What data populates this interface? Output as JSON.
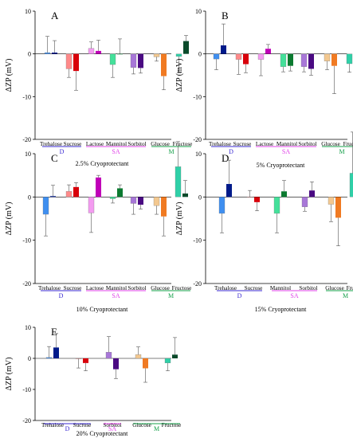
{
  "figure": {
    "ylabel": "ΔZP (mV)",
    "ylim": [
      -20,
      10
    ],
    "yticks": [
      -20,
      -10,
      0,
      10
    ]
  },
  "colors": {
    "Trehalose": [
      "#3f8ff0",
      "#001a8a"
    ],
    "Sucrose": [
      "#ff8a8a",
      "#d8000a"
    ],
    "Lactose": [
      "#f39bf0",
      "#c000b8"
    ],
    "Mannitol": [
      "#44e09a",
      "#0b7a30"
    ],
    "Sorbitol": [
      "#a877d8",
      "#4a0a82"
    ],
    "Glucose": [
      "#f3c890",
      "#f07a22"
    ],
    "Fructose": [
      "#2fd0a8",
      "#0a4a2a"
    ],
    "group_D": "#3a2ad2",
    "group_SA": "#e040e8",
    "group_M": "#16a04a"
  },
  "chart_data": [
    {
      "type": "bar",
      "panel": "A",
      "caption": "2.5% Cryoprotectant",
      "ylabel": "ΔZP (mV)",
      "ylim": [
        -20,
        10
      ],
      "categories": [
        "Trehalose",
        "Sucrose",
        "Lactose",
        "Mannitol",
        "Sorbitol",
        "Glucose",
        "Fructose"
      ],
      "values": [
        [
          0.3,
          0.3
        ],
        [
          -3.5,
          -4.0
        ],
        [
          1.3,
          0.7
        ],
        [
          -2.5,
          0.0
        ],
        [
          -3.2,
          -3.3
        ],
        [
          -0.7,
          -5.2
        ],
        [
          -0.6,
          3.0
        ]
      ],
      "errors": [
        [
          3.8,
          2.8
        ],
        [
          2.0,
          4.5
        ],
        [
          1.5,
          2.5
        ],
        [
          3.0,
          3.5
        ],
        [
          1.5,
          1.2
        ],
        [
          1.0,
          3.2
        ],
        [
          3.8,
          1.3
        ]
      ],
      "groups": [
        {
          "label": "D",
          "from": 0,
          "to": 1
        },
        {
          "label": "SA",
          "from": 2,
          "to": 4
        },
        {
          "label": "M",
          "from": 5,
          "to": 6
        }
      ]
    },
    {
      "type": "bar",
      "panel": "B",
      "caption": "5% Cryoprotectant",
      "ylabel": "ΔZP (mV)",
      "ylim": [
        -20,
        10
      ],
      "categories": [
        "Trehalose",
        "Sucrose",
        "Lactose",
        "Mannitol",
        "Sorbitol",
        "Glucose",
        "Fructose"
      ],
      "values": [
        [
          -1.2,
          2.0
        ],
        [
          -1.3,
          -2.4
        ],
        [
          -1.3,
          1.2
        ],
        [
          -3.0,
          -2.8
        ],
        [
          -3.0,
          -3.5
        ],
        [
          -1.7,
          -2.8
        ],
        [
          -2.3,
          2.0
        ]
      ],
      "errors": [
        [
          2.5,
          5.0
        ],
        [
          3.5,
          2.0
        ],
        [
          3.8,
          1.0
        ],
        [
          1.2,
          1.2
        ],
        [
          1.2,
          1.5
        ],
        [
          2.0,
          6.5
        ],
        [
          2.0,
          5.0
        ]
      ],
      "groups": [
        {
          "label": "D",
          "from": 0,
          "to": 1
        },
        {
          "label": "SA",
          "from": 2,
          "to": 4
        },
        {
          "label": "M",
          "from": 5,
          "to": 6
        }
      ]
    },
    {
      "type": "bar",
      "panel": "C",
      "caption": "10% Cryoprotectant",
      "ylabel": "ΔZP (mV)",
      "ylim": [
        -20,
        10
      ],
      "categories": [
        "Trehalose",
        "Sucrose",
        "Lactose",
        "Mannitol",
        "Sorbitol",
        "Glucose",
        "Fructose"
      ],
      "values": [
        [
          -4.0,
          0.2
        ],
        [
          1.3,
          2.3
        ],
        [
          -3.7,
          4.5
        ],
        [
          -0.4,
          2.0
        ],
        [
          -1.5,
          -1.8
        ],
        [
          -2.0,
          -4.5
        ],
        [
          7.0,
          0.8
        ]
      ],
      "errors": [
        [
          5.0,
          2.5
        ],
        [
          1.5,
          1.0
        ],
        [
          4.5,
          0.5
        ],
        [
          1.0,
          0.8
        ],
        [
          2.5,
          1.0
        ],
        [
          2.0,
          4.5
        ],
        [
          5.8,
          3.0
        ]
      ],
      "groups": [
        {
          "label": "D",
          "from": 0,
          "to": 1
        },
        {
          "label": "SA",
          "from": 2,
          "to": 4
        },
        {
          "label": "M",
          "from": 5,
          "to": 6
        }
      ]
    },
    {
      "type": "bar",
      "panel": "D",
      "caption": "15% Cryoprotectant",
      "ylabel": "ΔZP (mV)",
      "ylim": [
        -20,
        10
      ],
      "categories": [
        "Trehalose",
        "Sucrose",
        "Mannitol",
        "Sorbitol",
        "Glucose",
        "Fructose"
      ],
      "values": [
        [
          -3.8,
          3.0
        ],
        [
          0.0,
          -1.2
        ],
        [
          -3.8,
          1.3
        ],
        [
          -2.3,
          1.5
        ],
        [
          -1.7,
          -4.8
        ],
        [
          5.5,
          1.8
        ]
      ],
      "errors": [
        [
          4.5,
          5.5
        ],
        [
          1.5,
          2.0
        ],
        [
          4.5,
          2.5
        ],
        [
          1.0,
          2.0
        ],
        [
          4.0,
          6.5
        ],
        [
          9.5,
          3.0
        ]
      ],
      "groups": [
        {
          "label": "D",
          "from": 0,
          "to": 1
        },
        {
          "label": "SA",
          "from": 2,
          "to": 3
        },
        {
          "label": "M",
          "from": 4,
          "to": 5
        }
      ]
    },
    {
      "type": "bar",
      "panel": "E",
      "caption": "20% Cryoprotectant",
      "ylabel": "ΔZP (mV)",
      "ylim": [
        -20,
        10
      ],
      "categories": [
        "Trehalose",
        "Sucrose",
        "Sorbitol",
        "Glucose",
        "Fructose"
      ],
      "values": [
        [
          0.3,
          3.5
        ],
        [
          -0.1,
          -1.5
        ],
        [
          2.0,
          -3.5
        ],
        [
          1.2,
          -3.2
        ],
        [
          -1.5,
          1.2
        ]
      ],
      "errors": [
        [
          3.5,
          4.5
        ],
        [
          3.0,
          2.5
        ],
        [
          5.0,
          3.0
        ],
        [
          2.5,
          4.5
        ],
        [
          2.5,
          5.5
        ]
      ],
      "groups": [
        {
          "label": "D",
          "from": 0,
          "to": 1
        },
        {
          "label": "SA",
          "from": 2,
          "to": 2
        },
        {
          "label": "M",
          "from": 3,
          "to": 4
        }
      ]
    }
  ]
}
